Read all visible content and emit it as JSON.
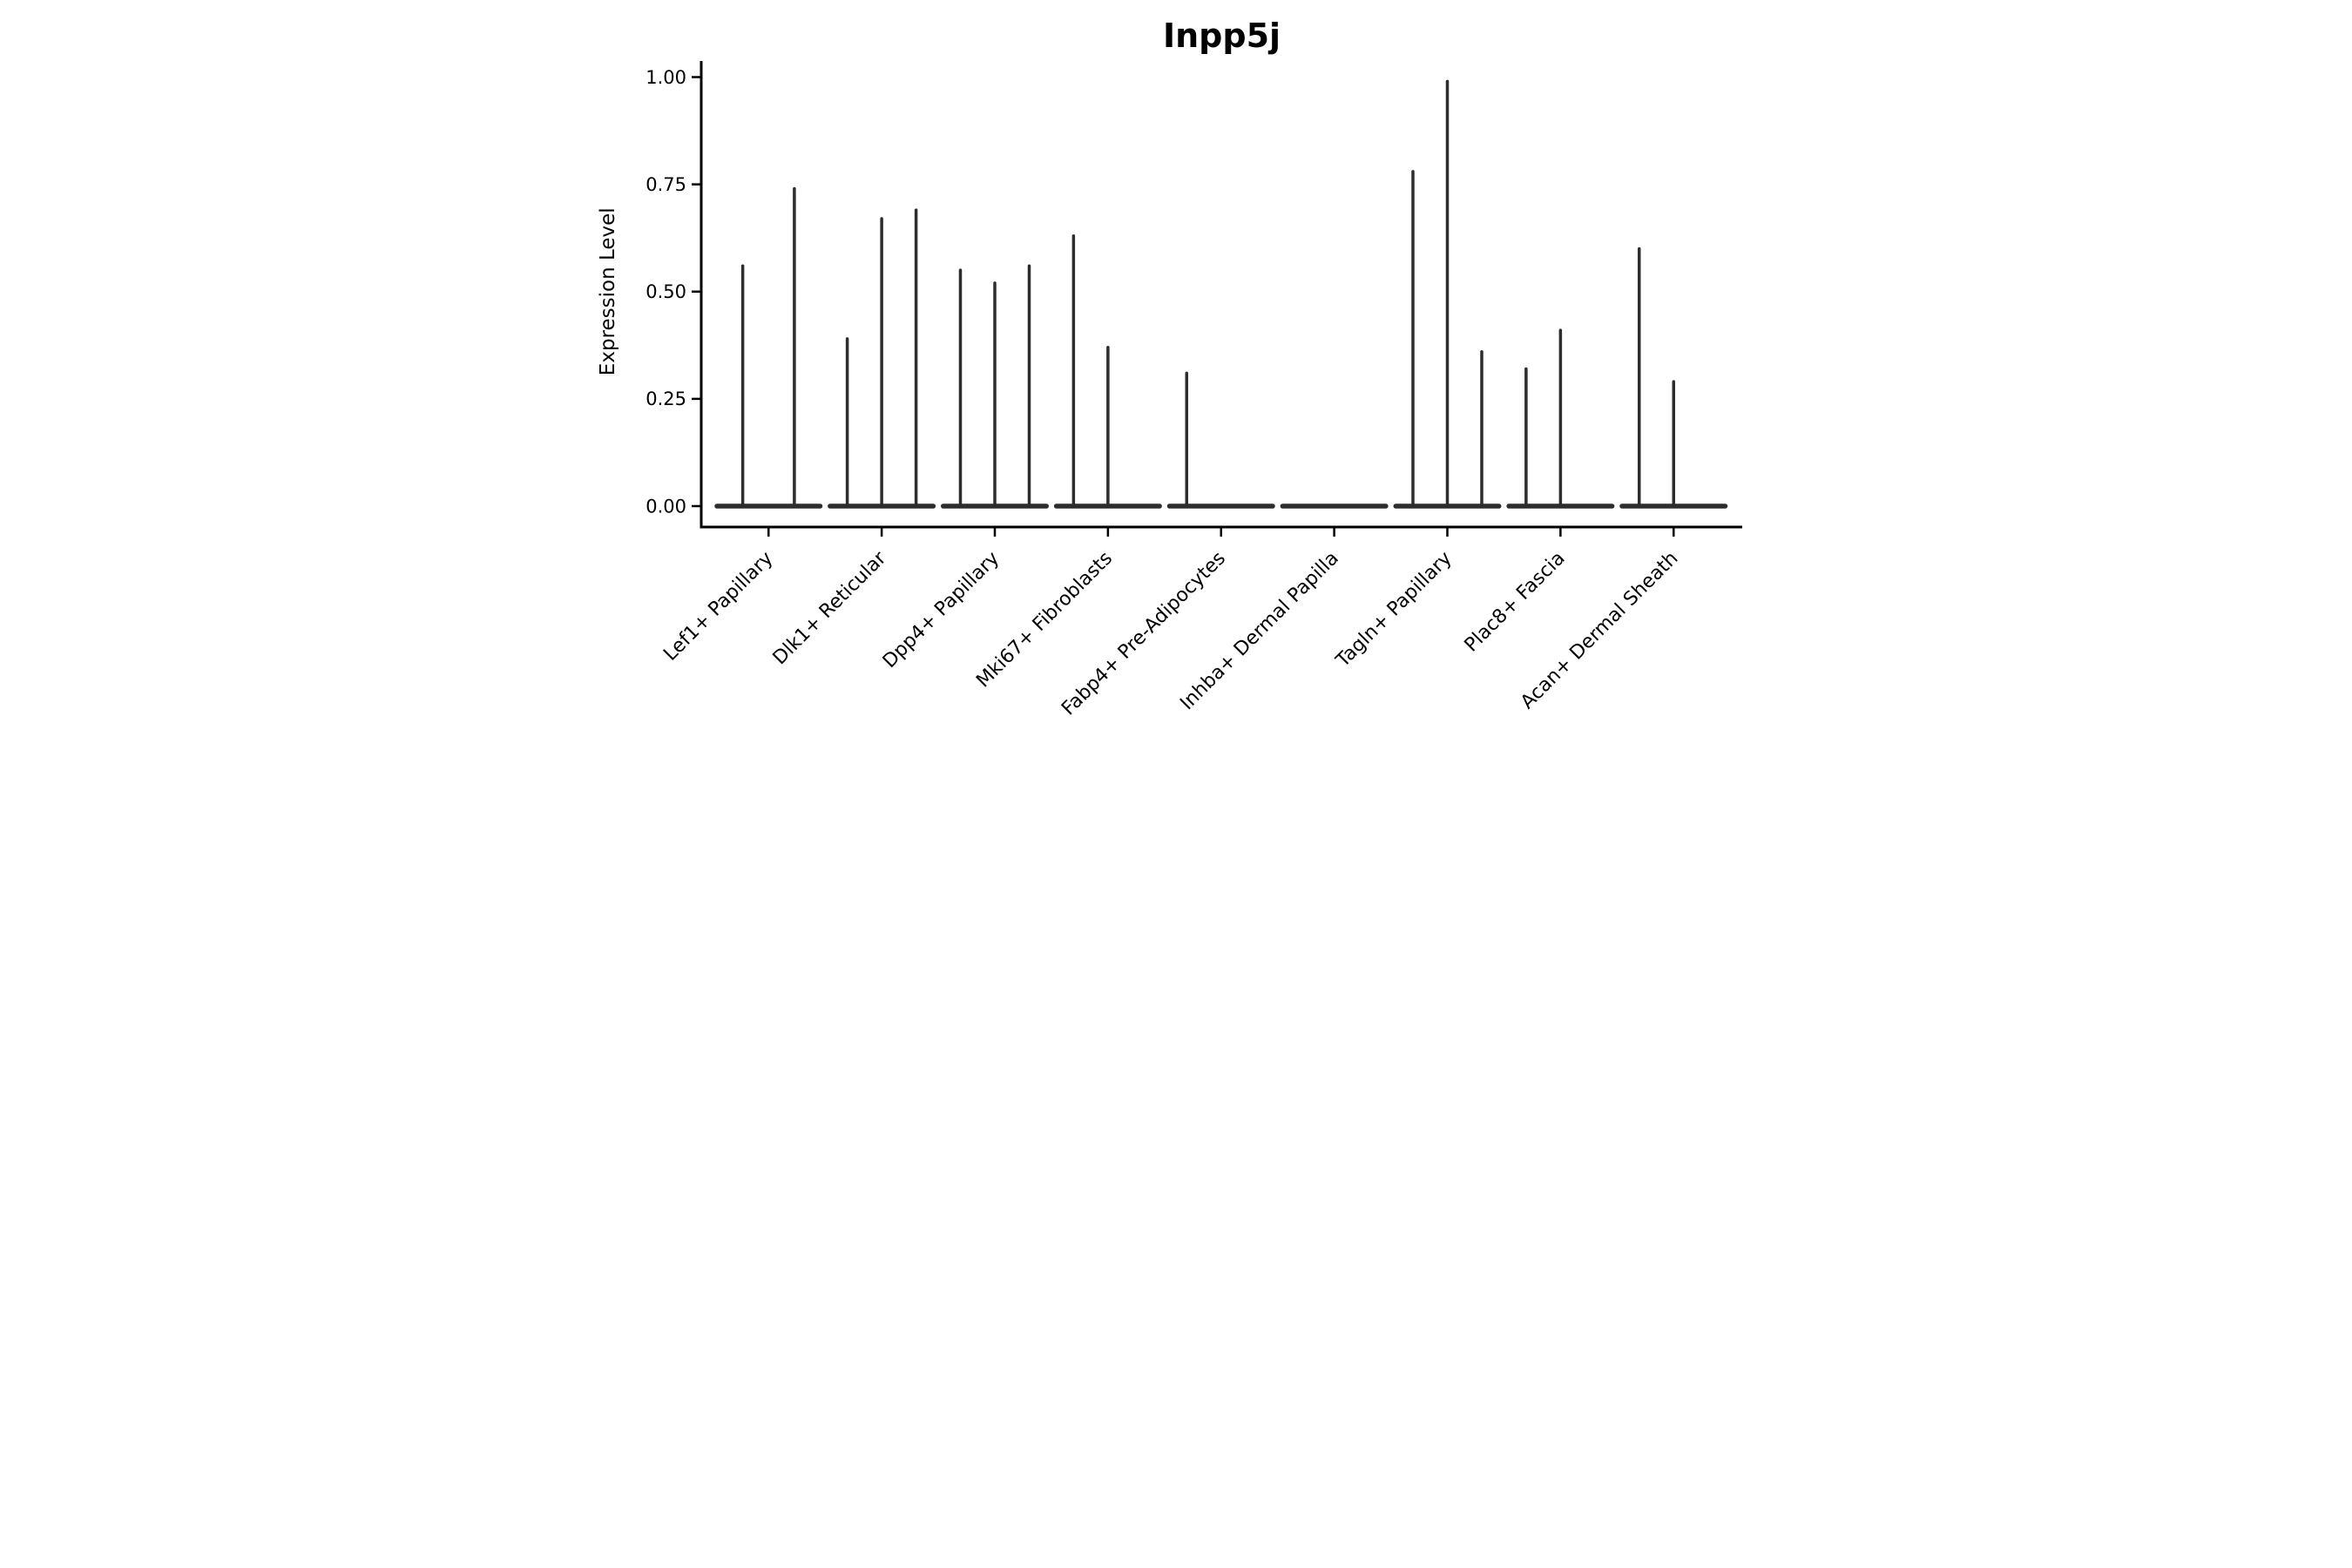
{
  "title": "Inpp5j",
  "axes": {
    "ylabel": "Expression Level",
    "xlabel": ""
  },
  "chart_data": {
    "type": "violin",
    "title": "Inpp5j",
    "xlabel": "",
    "ylabel": "Expression Level",
    "ylim": [
      0.0,
      1.0
    ],
    "yticks": [
      0.0,
      0.25,
      0.5,
      0.75,
      1.0
    ],
    "ytick_labels": [
      "0.00",
      "0.25",
      "0.50",
      "0.75",
      "1.00"
    ],
    "grid": false,
    "legend": null,
    "x_tick_rotation_deg": 45,
    "description": "Collapsed violins at zero baseline with thin spikes up to each sub-violin maximum expression value",
    "categories": [
      "Lef1+ Papillary",
      "Dlk1+ Reticular",
      "Dpp4+ Papillary",
      "Mki67+ Fibroblasts",
      "Fabp4+ Pre-Adipocytes",
      "Inhba+ Dermal Papilla",
      "Tagln+ Papillary",
      "Plac8+ Fascia",
      "Acan+ Dermal Sheath"
    ],
    "series": [
      {
        "category": "Lef1+ Papillary",
        "violin_max_values": [
          0.56,
          0.74
        ]
      },
      {
        "category": "Dlk1+ Reticular",
        "violin_max_values": [
          0.39,
          0.67,
          0.69
        ]
      },
      {
        "category": "Dpp4+ Papillary",
        "violin_max_values": [
          0.55,
          0.52,
          0.56
        ]
      },
      {
        "category": "Mki67+ Fibroblasts",
        "violin_max_values": [
          0.63,
          0.37,
          0.0
        ]
      },
      {
        "category": "Fabp4+ Pre-Adipocytes",
        "violin_max_values": [
          0.31,
          0.0,
          0.0
        ]
      },
      {
        "category": "Inhba+ Dermal Papilla",
        "violin_max_values": [
          0.0,
          0.0,
          0.0
        ]
      },
      {
        "category": "Tagln+ Papillary",
        "violin_max_values": [
          0.78,
          0.99,
          0.36
        ]
      },
      {
        "category": "Plac8+ Fascia",
        "violin_max_values": [
          0.32,
          0.41,
          0.0
        ]
      },
      {
        "category": "Acan+ Dermal Sheath",
        "violin_max_values": [
          0.6,
          0.29,
          0.0
        ]
      }
    ],
    "style": {
      "violin_color": "#2d2d2d",
      "spine_color": "#000000",
      "text_color": "#000000",
      "background": "#ffffff"
    }
  }
}
